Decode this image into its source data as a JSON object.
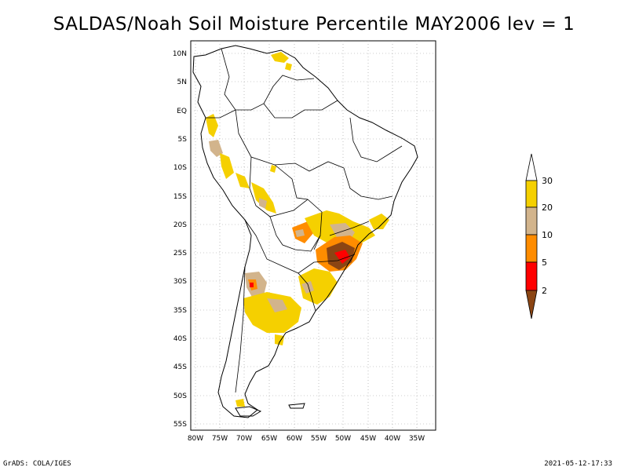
{
  "title": "SALDAS/Noah Soil Moisture Percentile MAY2006 lev = 1",
  "footer": {
    "left": "GrADS: COLA/IGES",
    "right": "2021-05-12-17:33"
  },
  "map": {
    "region": "South America",
    "lon_labels": [
      "80W",
      "75W",
      "70W",
      "65W",
      "60W",
      "55W",
      "50W",
      "45W",
      "40W",
      "35W"
    ],
    "lat_labels": [
      "10N",
      "5N",
      "EQ",
      "5S",
      "10S",
      "15S",
      "20S",
      "25S",
      "30S",
      "35S",
      "40S",
      "45S",
      "50S",
      "55S"
    ],
    "grid": true
  },
  "legend": {
    "labels": [
      "30",
      "20",
      "10",
      "5",
      "2"
    ],
    "colors": {
      "above_30": "#ffffff",
      "20_30": "#f5d000",
      "10_20": "#d2b48c",
      "5_10": "#ff8c00",
      "2_5": "#ff0000",
      "below_2": "#8b4513"
    }
  }
}
